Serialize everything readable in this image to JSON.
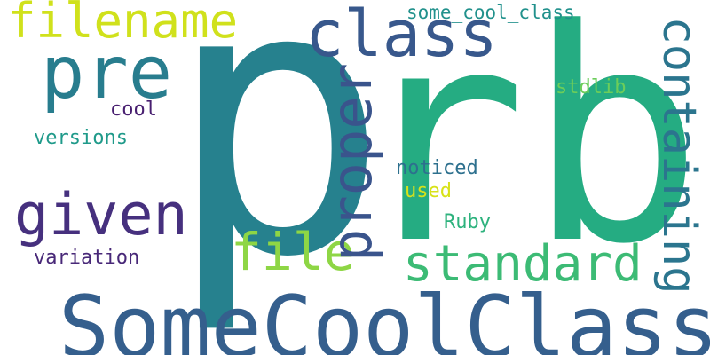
{
  "words": [
    {
      "key": "p",
      "text": "p",
      "color": "#26818e"
    },
    {
      "key": "rb",
      "text": "rb",
      "color": "#25ac82"
    },
    {
      "key": "somecoolclass",
      "text": "SomeCoolClass",
      "color": "#355f8d"
    },
    {
      "key": "class",
      "text": "class",
      "color": "#38588c"
    },
    {
      "key": "pre",
      "text": "pre",
      "color": "#287d8e"
    },
    {
      "key": "filename",
      "text": "filename",
      "color": "#d0e11c"
    },
    {
      "key": "given",
      "text": "given",
      "color": "#46307e"
    },
    {
      "key": "file",
      "text": "file",
      "color": "#8ed645"
    },
    {
      "key": "standard",
      "text": "standard",
      "color": "#3cbb75"
    },
    {
      "key": "proper",
      "text": "proper",
      "color": "#3a548c"
    },
    {
      "key": "containing",
      "text": "containing",
      "color": "#2b758e"
    },
    {
      "key": "some_cool_class",
      "text": "some_cool_class",
      "color": "#21918c"
    },
    {
      "key": "stdlib",
      "text": "stdlib",
      "color": "#6ccd5a"
    },
    {
      "key": "cool",
      "text": "cool",
      "color": "#481f70"
    },
    {
      "key": "versions",
      "text": "versions",
      "color": "#1f9a8a"
    },
    {
      "key": "noticed",
      "text": "noticed",
      "color": "#2d708e"
    },
    {
      "key": "used",
      "text": "used",
      "color": "#d8e219"
    },
    {
      "key": "ruby",
      "text": "Ruby",
      "color": "#2db27d"
    },
    {
      "key": "variation",
      "text": "variation",
      "color": "#482878"
    }
  ]
}
